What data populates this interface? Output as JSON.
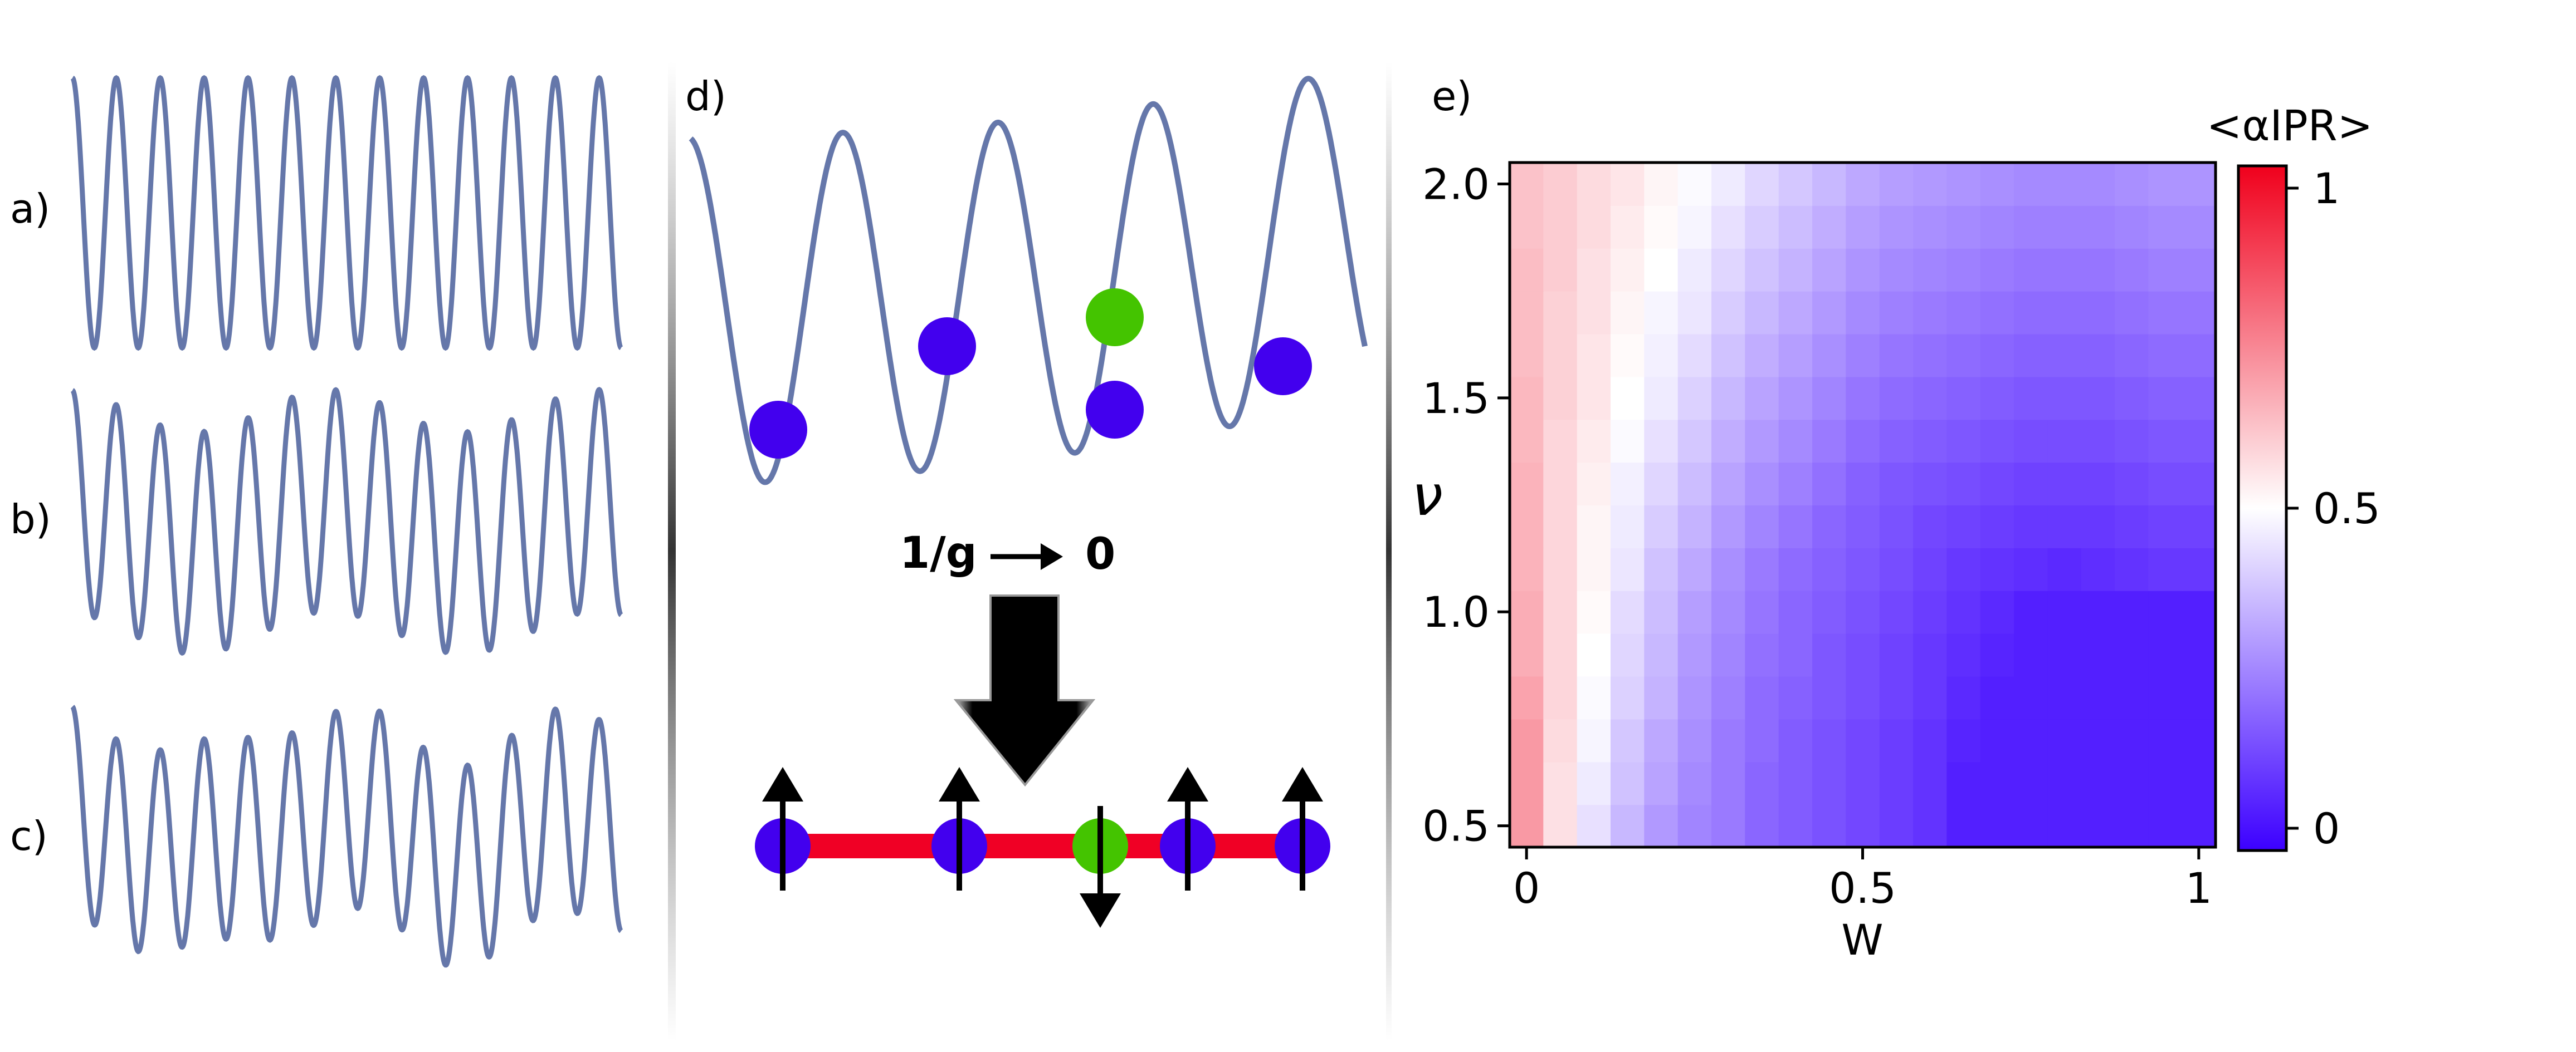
{
  "panels": {
    "a": {
      "label": "a)"
    },
    "b": {
      "label": "b)"
    },
    "c": {
      "label": "c)"
    },
    "d": {
      "label": "d)",
      "arrow_label_left": "1/g",
      "arrow_label_right": "0"
    },
    "e": {
      "label": "e)"
    }
  },
  "colors": {
    "curve": "#6577aa",
    "atom_blue": "#4200ee",
    "atom_green": "#44c400",
    "chain_red": "#f00025"
  },
  "chart_data": {
    "type": "heatmap",
    "xlabel": "W",
    "ylabel": "ν",
    "colorbar_label": "<αIPR>",
    "x_ticks": [
      "0",
      "0.5",
      "1"
    ],
    "y_ticks": [
      "0.5",
      "1.0",
      "1.5",
      "2.0"
    ],
    "colorbar_ticks": [
      "0",
      "0.5",
      "1"
    ],
    "x_range": [
      0,
      1
    ],
    "y_range": [
      0.5,
      2.0
    ],
    "colorbar_range": [
      0,
      1
    ],
    "colormap": "bwr",
    "x_values": [
      0,
      0.05,
      0.1,
      0.15,
      0.2,
      0.25,
      0.3,
      0.35,
      0.4,
      0.45,
      0.5,
      0.55,
      0.6,
      0.65,
      0.7,
      0.75,
      0.8,
      0.85,
      0.9,
      0.95,
      1.0
    ],
    "y_values": [
      0.5,
      0.6,
      0.7,
      0.8,
      0.9,
      1.0,
      1.1,
      1.2,
      1.3,
      1.4,
      1.5,
      1.6,
      1.7,
      1.8,
      1.9,
      2.0
    ],
    "values": [
      [
        0.7,
        0.56,
        0.44,
        0.36,
        0.3,
        0.26,
        0.24,
        0.2,
        0.18,
        0.16,
        0.14,
        0.12,
        0.1,
        0.06,
        0.06,
        0.06,
        0.06,
        0.06,
        0.06,
        0.06,
        0.06
      ],
      [
        0.7,
        0.56,
        0.46,
        0.38,
        0.32,
        0.27,
        0.24,
        0.2,
        0.18,
        0.16,
        0.14,
        0.12,
        0.1,
        0.06,
        0.06,
        0.06,
        0.06,
        0.06,
        0.06,
        0.06,
        0.06
      ],
      [
        0.7,
        0.57,
        0.48,
        0.39,
        0.33,
        0.28,
        0.24,
        0.21,
        0.18,
        0.16,
        0.14,
        0.12,
        0.1,
        0.07,
        0.06,
        0.06,
        0.06,
        0.06,
        0.06,
        0.06,
        0.06
      ],
      [
        0.68,
        0.58,
        0.49,
        0.41,
        0.35,
        0.29,
        0.25,
        0.21,
        0.19,
        0.17,
        0.15,
        0.13,
        0.11,
        0.08,
        0.06,
        0.06,
        0.06,
        0.06,
        0.06,
        0.06,
        0.06
      ],
      [
        0.66,
        0.58,
        0.5,
        0.42,
        0.36,
        0.3,
        0.26,
        0.22,
        0.2,
        0.17,
        0.15,
        0.13,
        0.11,
        0.09,
        0.07,
        0.06,
        0.06,
        0.06,
        0.06,
        0.06,
        0.06
      ],
      [
        0.66,
        0.58,
        0.51,
        0.43,
        0.37,
        0.31,
        0.27,
        0.23,
        0.2,
        0.18,
        0.16,
        0.14,
        0.12,
        0.1,
        0.08,
        0.06,
        0.06,
        0.06,
        0.06,
        0.06,
        0.06
      ],
      [
        0.65,
        0.58,
        0.52,
        0.45,
        0.38,
        0.33,
        0.28,
        0.24,
        0.21,
        0.19,
        0.17,
        0.15,
        0.13,
        0.11,
        0.1,
        0.09,
        0.08,
        0.09,
        0.1,
        0.11,
        0.11
      ],
      [
        0.65,
        0.58,
        0.52,
        0.46,
        0.4,
        0.35,
        0.3,
        0.26,
        0.23,
        0.2,
        0.18,
        0.16,
        0.14,
        0.13,
        0.12,
        0.11,
        0.11,
        0.11,
        0.12,
        0.13,
        0.13
      ],
      [
        0.65,
        0.58,
        0.53,
        0.47,
        0.42,
        0.37,
        0.32,
        0.28,
        0.25,
        0.22,
        0.19,
        0.17,
        0.16,
        0.15,
        0.14,
        0.13,
        0.13,
        0.13,
        0.14,
        0.15,
        0.15
      ],
      [
        0.64,
        0.58,
        0.54,
        0.49,
        0.44,
        0.39,
        0.34,
        0.3,
        0.27,
        0.24,
        0.21,
        0.19,
        0.18,
        0.17,
        0.16,
        0.15,
        0.15,
        0.15,
        0.16,
        0.17,
        0.17
      ],
      [
        0.64,
        0.59,
        0.55,
        0.5,
        0.46,
        0.41,
        0.36,
        0.32,
        0.29,
        0.26,
        0.23,
        0.21,
        0.2,
        0.19,
        0.18,
        0.17,
        0.17,
        0.17,
        0.18,
        0.19,
        0.19
      ],
      [
        0.63,
        0.59,
        0.55,
        0.51,
        0.47,
        0.43,
        0.38,
        0.34,
        0.31,
        0.28,
        0.25,
        0.23,
        0.22,
        0.21,
        0.2,
        0.19,
        0.19,
        0.19,
        0.2,
        0.21,
        0.21
      ],
      [
        0.63,
        0.59,
        0.56,
        0.52,
        0.48,
        0.45,
        0.4,
        0.36,
        0.33,
        0.3,
        0.27,
        0.25,
        0.24,
        0.23,
        0.22,
        0.21,
        0.21,
        0.21,
        0.22,
        0.23,
        0.23
      ],
      [
        0.63,
        0.6,
        0.56,
        0.53,
        0.5,
        0.46,
        0.42,
        0.38,
        0.35,
        0.32,
        0.29,
        0.27,
        0.26,
        0.25,
        0.24,
        0.23,
        0.23,
        0.23,
        0.24,
        0.25,
        0.25
      ],
      [
        0.62,
        0.6,
        0.57,
        0.54,
        0.51,
        0.48,
        0.44,
        0.4,
        0.37,
        0.34,
        0.31,
        0.29,
        0.28,
        0.27,
        0.26,
        0.25,
        0.25,
        0.25,
        0.26,
        0.27,
        0.27
      ],
      [
        0.62,
        0.6,
        0.57,
        0.55,
        0.52,
        0.49,
        0.46,
        0.42,
        0.39,
        0.36,
        0.33,
        0.31,
        0.3,
        0.29,
        0.28,
        0.27,
        0.27,
        0.27,
        0.28,
        0.29,
        0.29
      ]
    ]
  }
}
